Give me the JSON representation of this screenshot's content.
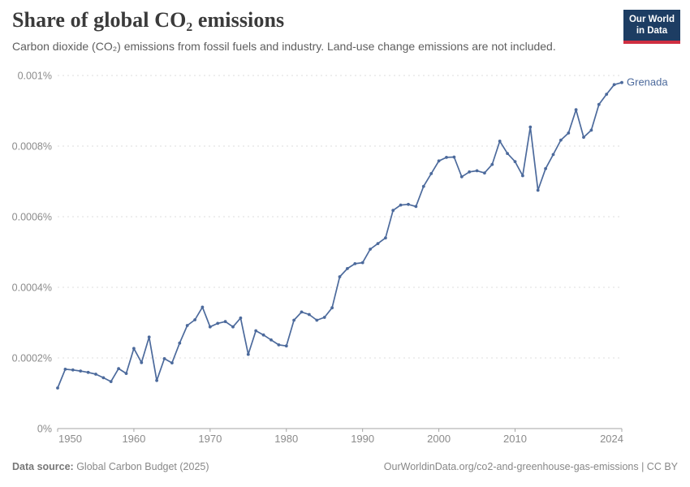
{
  "header": {
    "title": "Share of global CO₂ emissions",
    "subtitle": "Carbon dioxide (CO₂) emissions from fossil fuels and industry. Land-use change emissions are not included."
  },
  "logo": {
    "line1": "Our World",
    "line2": "in Data",
    "bg": "#1d3d63",
    "accent": "#cf2e41"
  },
  "footer": {
    "source_label": "Data source:",
    "source": " Global Carbon Budget (2025)",
    "right": "OurWorldinData.org/co2-and-greenhouse-gas-emissions | CC BY"
  },
  "chart_data": {
    "type": "line",
    "title": "Share of global CO₂ emissions",
    "series": [
      {
        "name": "Grenada",
        "color": "#4c6a9c"
      }
    ],
    "x": [
      1950,
      1951,
      1952,
      1953,
      1954,
      1955,
      1956,
      1957,
      1958,
      1959,
      1960,
      1961,
      1962,
      1963,
      1964,
      1965,
      1966,
      1967,
      1968,
      1969,
      1970,
      1971,
      1972,
      1973,
      1974,
      1975,
      1976,
      1977,
      1978,
      1979,
      1980,
      1981,
      1982,
      1983,
      1984,
      1985,
      1986,
      1987,
      1988,
      1989,
      1990,
      1991,
      1992,
      1993,
      1994,
      1995,
      1996,
      1997,
      1998,
      1999,
      2000,
      2001,
      2002,
      2003,
      2004,
      2005,
      2006,
      2007,
      2008,
      2009,
      2010,
      2011,
      2012,
      2013,
      2014,
      2015,
      2016,
      2017,
      2018,
      2019,
      2020,
      2021,
      2022,
      2023,
      2024
    ],
    "y_percent": [
      0.000115,
      0.000168,
      0.000166,
      0.000163,
      0.000159,
      0.000154,
      0.000144,
      0.000133,
      0.00017,
      0.000156,
      0.000227,
      0.000187,
      0.000259,
      0.000136,
      0.000198,
      0.000186,
      0.000242,
      0.000292,
      0.000308,
      0.000344,
      0.000288,
      0.000298,
      0.000303,
      0.000288,
      0.000313,
      0.00021,
      0.000277,
      0.000265,
      0.000251,
      0.000237,
      0.000234,
      0.000307,
      0.00033,
      0.000323,
      0.000307,
      0.000315,
      0.000342,
      0.00043,
      0.000453,
      0.000467,
      0.00047,
      0.000508,
      0.000524,
      0.00054,
      0.000618,
      0.000633,
      0.000635,
      0.000629,
      0.000686,
      0.000722,
      0.000758,
      0.000768,
      0.000769,
      0.000713,
      0.000727,
      0.00073,
      0.000724,
      0.000748,
      0.000814,
      0.000779,
      0.000756,
      0.000716,
      0.000854,
      0.000675,
      0.000736,
      0.000776,
      0.000817,
      0.000837,
      0.000903,
      0.000825,
      0.000845,
      0.000918,
      0.000947,
      0.000974,
      0.00098
    ],
    "series_label": "Grenada",
    "xlabel": "",
    "ylabel": "",
    "xlim": [
      1950,
      2024
    ],
    "ylim": [
      0,
      0.001
    ],
    "x_ticks": [
      1950,
      1960,
      1970,
      1980,
      1990,
      2000,
      2010,
      2024
    ],
    "y_ticks": [
      0,
      0.0002,
      0.0004,
      0.0006,
      0.0008,
      0.001
    ],
    "y_tick_labels": [
      "0%",
      "0.0002%",
      "0.0004%",
      "0.0006%",
      "0.0008%",
      "0.001%"
    ],
    "grid": "horizontal-dashed",
    "legend_position": "end-of-line-label",
    "colors": {
      "line": "#4c6a9c",
      "grid": "#dedede",
      "axis": "#a5a5a5",
      "tick_text": "#8b8b8b"
    }
  }
}
